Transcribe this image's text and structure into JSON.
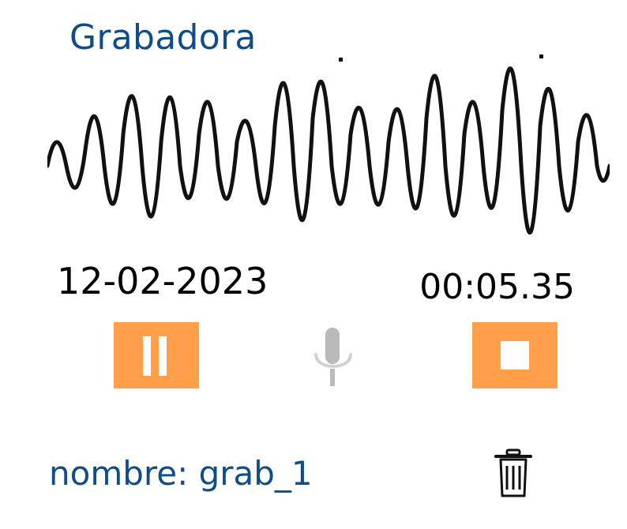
{
  "app": {
    "title": "Grabadora"
  },
  "recording": {
    "date": "12-02-2023",
    "elapsed": "00:05.35",
    "name": "nombre: grab_1"
  },
  "controls": {
    "pause_icon": "pause-icon",
    "mic_icon": "microphone-icon",
    "stop_icon": "stop-icon",
    "delete_icon": "trash-icon"
  },
  "colors": {
    "accent": "#ff9f4a",
    "title": "#0f4d8a",
    "mic": "#b9b9b9",
    "waveform": "#111111"
  }
}
